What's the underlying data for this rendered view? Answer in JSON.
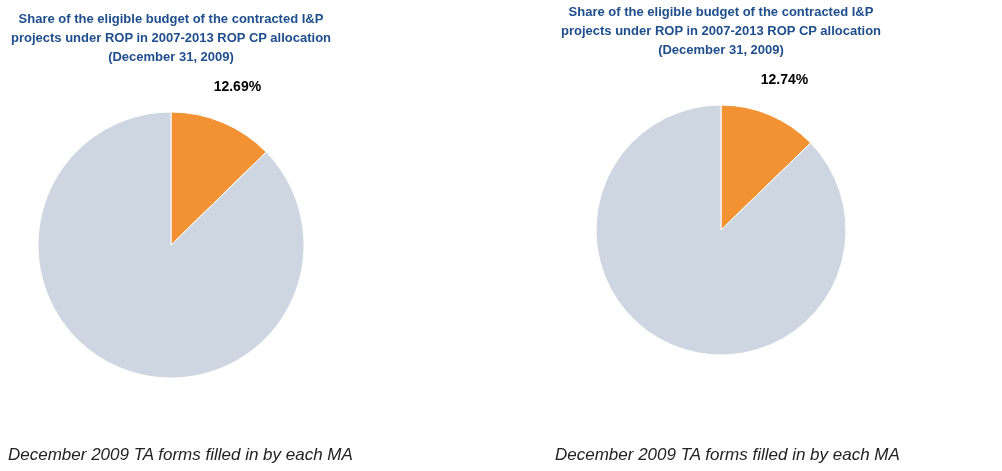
{
  "chart_data": [
    {
      "type": "pie",
      "title": "Share of the eligible budget of the contracted I&P\nprojects under ROP in 2007-2013 ROP CP allocation\n(December 31, 2009)",
      "categories": [
        null,
        null
      ],
      "values": [
        12.69,
        87.31
      ],
      "colors": [
        "#f39233",
        "#cdd6e1"
      ],
      "value_labels": [
        "12.69%",
        null
      ],
      "annotations": [
        "December 2009 TA forms filled in by each MA"
      ]
    },
    {
      "type": "pie",
      "title": "Share of the eligible budget of the contracted I&P\nprojects under ROP in 2007-2013 ROP CP allocation\n(December 31, 2009)",
      "categories": [
        null,
        null
      ],
      "values": [
        12.74,
        87.26
      ],
      "colors": [
        "#f39233",
        "#cdd6e1"
      ],
      "value_labels": [
        "12.74%",
        null
      ],
      "annotations": [
        "December 2009 TA forms filled in by each MA"
      ]
    }
  ]
}
